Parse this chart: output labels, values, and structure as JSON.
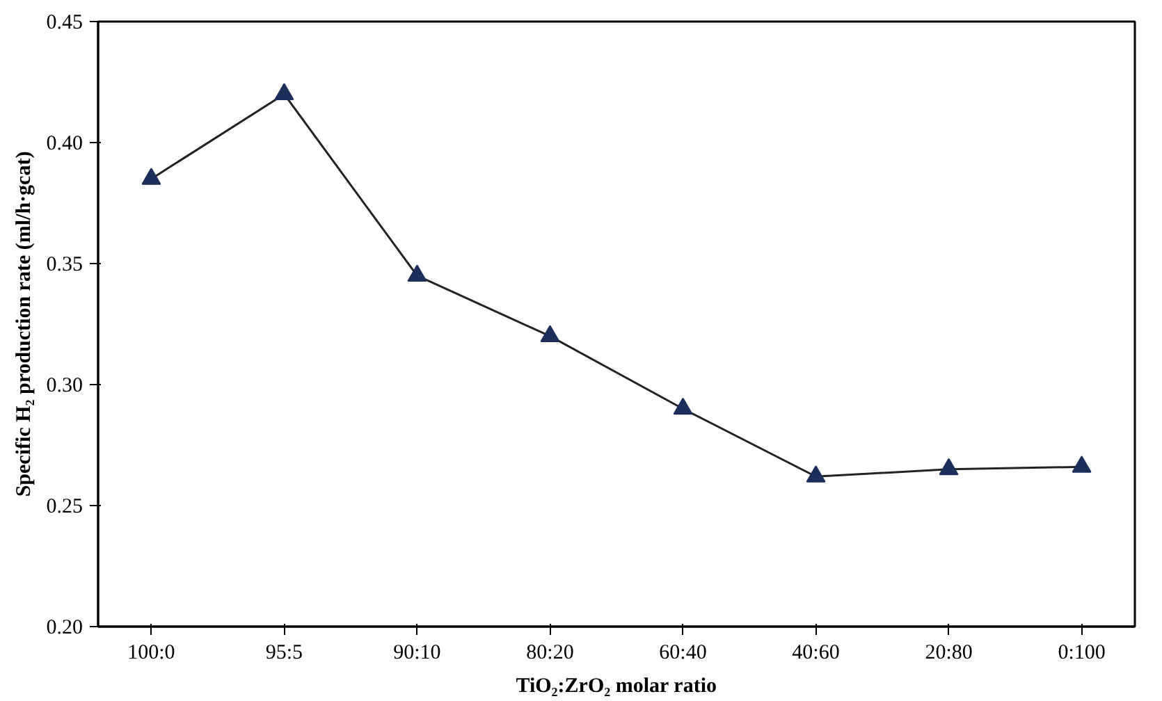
{
  "chart_data": {
    "type": "line",
    "xlabel": "TiO₂:ZrO₂ molar ratio",
    "ylabel": "Specific H₂ production rate (ml/h·gcat)",
    "categories": [
      "100:0",
      "95:5",
      "90:10",
      "80:20",
      "60:40",
      "40:60",
      "20:80",
      "0:100"
    ],
    "series": [
      {
        "color": "#1c2e5a",
        "values": [
          0.385,
          0.42,
          0.345,
          0.32,
          0.29,
          0.262,
          0.265,
          0.266
        ]
      }
    ],
    "ylim": [
      0.2,
      0.45
    ],
    "yticks": [
      {
        "value": 0.2,
        "label": "0.20"
      },
      {
        "value": 0.25,
        "label": "0.25"
      },
      {
        "value": 0.3,
        "label": "0.30"
      },
      {
        "value": 0.35,
        "label": "0.35"
      },
      {
        "value": 0.4,
        "label": "0.40"
      },
      {
        "value": 0.45,
        "label": "0.45"
      }
    ],
    "grid": false,
    "marker": "triangle",
    "line_style": "solid"
  }
}
